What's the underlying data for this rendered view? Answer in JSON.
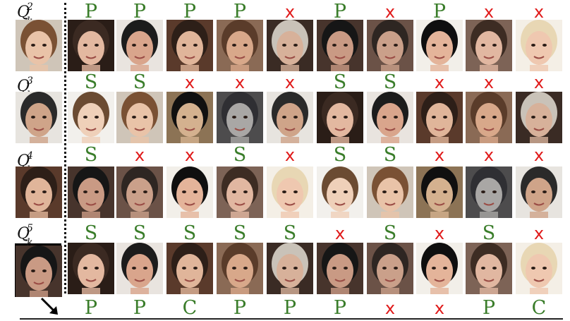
{
  "query_labels": [
    {
      "base": "Q",
      "sub": "k",
      "sup": "2"
    },
    {
      "base": "Q",
      "sub": "k",
      "sup": "3"
    },
    {
      "base": "Q",
      "sub": "k",
      "sup": "4"
    },
    {
      "base": "Q",
      "sub": "k",
      "sup": "5"
    }
  ],
  "rows": [
    {
      "marks": [
        "P",
        "P",
        "P",
        "P",
        "x",
        "P",
        "x",
        "P",
        "x",
        "x"
      ]
    },
    {
      "marks": [
        "S",
        "S",
        "x",
        "x",
        "x",
        "S",
        "S",
        "x",
        "x",
        "x"
      ]
    },
    {
      "marks": [
        "S",
        "x",
        "x",
        "S",
        "x",
        "S",
        "S",
        "x",
        "x",
        "x"
      ]
    },
    {
      "marks": [
        "S",
        "S",
        "S",
        "S",
        "S",
        "x",
        "S",
        "x",
        "S",
        "x"
      ]
    }
  ],
  "bottom_marks": [
    "P",
    "P",
    "C",
    "P",
    "P",
    "P",
    "x",
    "x",
    "P",
    "C"
  ],
  "colors": {
    "positive": "#3a7d2a",
    "negative": "#e01b1b"
  },
  "icons": {
    "arrow": "arrow-down-right-icon"
  }
}
